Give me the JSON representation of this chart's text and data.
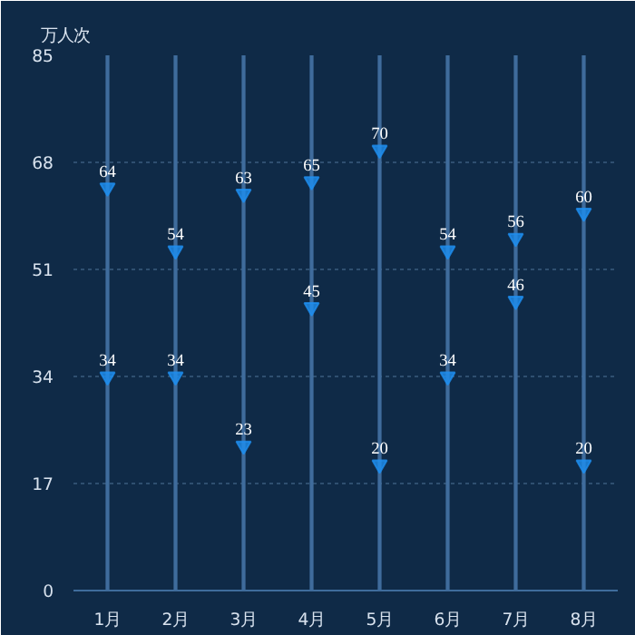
{
  "chart_data": {
    "type": "scatter",
    "ylabel": "万人次",
    "categories": [
      "1月",
      "2月",
      "3月",
      "4月",
      "5月",
      "6月",
      "7月",
      "8月"
    ],
    "ylim": [
      0,
      85
    ],
    "yticks": [
      0,
      17,
      34,
      51,
      68,
      85
    ],
    "grid": "y",
    "marker": "triangle",
    "series": [
      {
        "type": "bar",
        "color": "#3f6c9c",
        "values": [
          85,
          85,
          85,
          85,
          85,
          85,
          85,
          85
        ]
      },
      {
        "color": "#1e8ff0",
        "values": [
          64,
          54,
          63,
          65,
          70,
          54,
          56,
          60
        ],
        "value_labels": [
          "64",
          "54",
          "63",
          "65",
          "70",
          "54",
          "56",
          "60"
        ]
      },
      {
        "color": "#1e8ff0",
        "values": [
          34,
          34,
          23,
          45,
          20,
          34,
          46,
          20
        ],
        "value_labels": [
          "34",
          "34",
          "23",
          "45",
          "20",
          "34",
          "46",
          "20"
        ]
      }
    ]
  }
}
